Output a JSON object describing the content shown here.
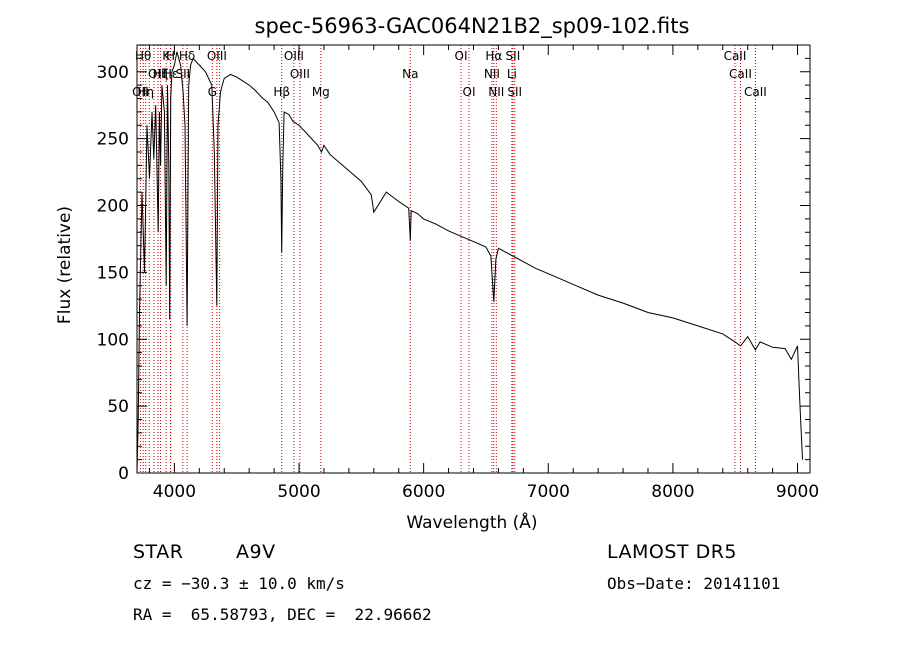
{
  "chart_data": {
    "type": "line",
    "title": "spec-56963-GAC064N21B2_sp09-102.fits",
    "xlabel": "Wavelength (Å)",
    "ylabel": "Flux (relative)",
    "xlim": [
      3700,
      9100
    ],
    "ylim": [
      0,
      320
    ],
    "xticks": [
      4000,
      5000,
      6000,
      7000,
      8000,
      9000
    ],
    "yticks": [
      0,
      50,
      100,
      150,
      200,
      250,
      300
    ],
    "grid": false,
    "series": [
      {
        "x": [
          3700,
          3710,
          3720,
          3740,
          3760,
          3780,
          3800,
          3820,
          3835,
          3850,
          3870,
          3880,
          3889,
          3900,
          3920,
          3934,
          3945,
          3955,
          3962,
          3970,
          3980,
          4000,
          4020,
          4050,
          4070,
          4085,
          4102,
          4115,
          4130,
          4150,
          4200,
          4250,
          4300,
          4320,
          4340,
          4350,
          4370,
          4400,
          4450,
          4500,
          4550,
          4600,
          4650,
          4700,
          4750,
          4800,
          4840,
          4855,
          4861,
          4870,
          4880,
          4920,
          4950,
          5000,
          5050,
          5100,
          5150,
          5180,
          5200,
          5250,
          5300,
          5400,
          5500,
          5580,
          5600,
          5700,
          5800,
          5880,
          5893,
          5900,
          5950,
          6000,
          6100,
          6200,
          6300,
          6400,
          6500,
          6540,
          6563,
          6580,
          6600,
          6700,
          6800,
          6900,
          7000,
          7200,
          7400,
          7600,
          7800,
          8000,
          8200,
          8400,
          8498,
          8542,
          8600,
          8662,
          8700,
          8800,
          8900,
          8950,
          9000,
          9020,
          9040
        ],
        "y": [
          0,
          40,
          120,
          210,
          150,
          260,
          220,
          270,
          235,
          275,
          180,
          270,
          230,
          290,
          270,
          140,
          290,
          230,
          115,
          280,
          300,
          305,
          315,
          305,
          285,
          260,
          110,
          290,
          305,
          310,
          305,
          300,
          290,
          240,
          125,
          260,
          285,
          295,
          298,
          296,
          293,
          290,
          286,
          281,
          277,
          270,
          262,
          220,
          165,
          230,
          270,
          268,
          263,
          260,
          255,
          250,
          245,
          240,
          245,
          238,
          234,
          226,
          218,
          208,
          195,
          210,
          203,
          198,
          174,
          196,
          194,
          190,
          186,
          181,
          177,
          173,
          169,
          162,
          128,
          160,
          168,
          163,
          158,
          153,
          149,
          141,
          133,
          127,
          120,
          116,
          110,
          104,
          98,
          95,
          102,
          92,
          98,
          94,
          93,
          85,
          95,
          50,
          10
        ]
      }
    ],
    "lines": [
      {
        "x": 3727,
        "label": "OII",
        "row": 3
      },
      {
        "x": 3750,
        "label": "Hθ",
        "row": 1
      },
      {
        "x": 3770,
        "label": "Hη",
        "row": 3
      },
      {
        "x": 3798,
        "label": "",
        "row": 0
      },
      {
        "x": 3836,
        "label": "",
        "row": 0
      },
      {
        "x": 3869,
        "label": "OIII",
        "row": 2
      },
      {
        "x": 3889,
        "label": "Hζ",
        "row": 2
      },
      {
        "x": 3934,
        "label": "K",
        "row": 1
      },
      {
        "x": 3969,
        "label": "H",
        "row": 1
      },
      {
        "x": 3970,
        "label": "Hε",
        "row": 2
      },
      {
        "x": 4102,
        "label": "Hδ",
        "row": 1
      },
      {
        "x": 4068,
        "label": "SII",
        "row": 2
      },
      {
        "x": 4304,
        "label": "G",
        "row": 3
      },
      {
        "x": 4341,
        "label": "OIII",
        "row": 1
      },
      {
        "x": 4363,
        "label": "",
        "row": 0
      },
      {
        "x": 4861,
        "label": "Hβ",
        "row": 3
      },
      {
        "x": 4959,
        "label": "OIII",
        "row": 1
      },
      {
        "x": 5007,
        "label": "OIII",
        "row": 2
      },
      {
        "x": 5175,
        "label": "Mg",
        "row": 3
      },
      {
        "x": 5893,
        "label": "Na",
        "row": 2
      },
      {
        "x": 6300,
        "label": "OI",
        "row": 1
      },
      {
        "x": 6364,
        "label": "OI",
        "row": 3
      },
      {
        "x": 6548,
        "label": "NII",
        "row": 2
      },
      {
        "x": 6563,
        "label": "Hα",
        "row": 1
      },
      {
        "x": 6583,
        "label": "NII",
        "row": 3
      },
      {
        "x": 6708,
        "label": "Li",
        "row": 2
      },
      {
        "x": 6716,
        "label": "SII",
        "row": 1
      },
      {
        "x": 6731,
        "label": "SII",
        "row": 3
      },
      {
        "x": 8498,
        "label": "CaII",
        "row": 1
      },
      {
        "x": 8542,
        "label": "CaII",
        "row": 2
      },
      {
        "x": 8662,
        "label": "CaII",
        "row": 3
      }
    ],
    "line_color": "#cc0000"
  },
  "info": {
    "class": "STAR",
    "subclass": "A9V",
    "survey": "LAMOST DR5",
    "cz": "cz = −30.3 ± 10.0 km/s",
    "obs_date": "Obs−Date: 20141101",
    "radec": "RA =  65.58793, DEC =  22.96662"
  }
}
